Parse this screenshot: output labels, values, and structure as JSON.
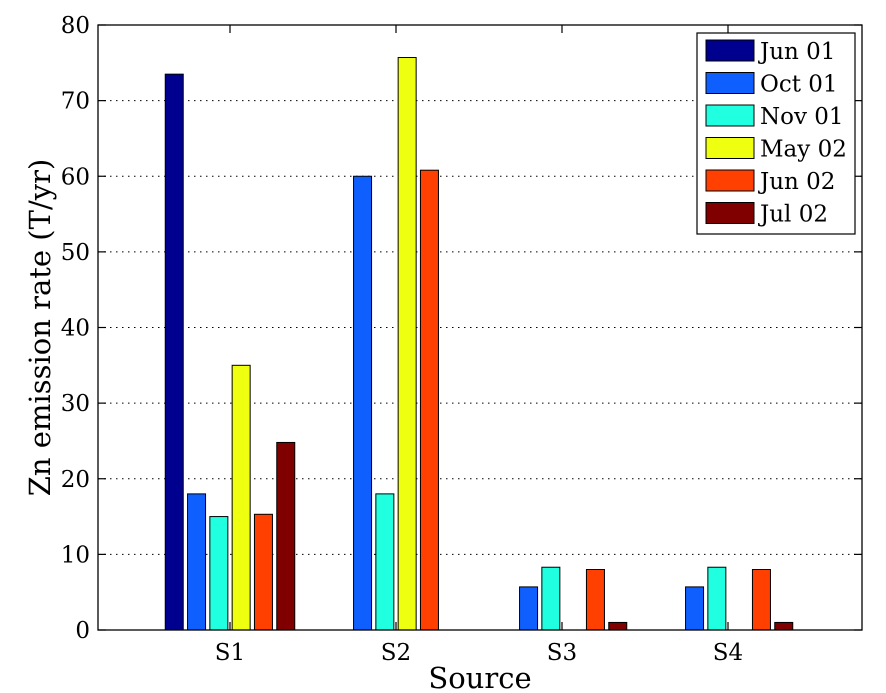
{
  "chart_data": {
    "type": "bar",
    "title": "",
    "xlabel": "Source",
    "ylabel": "Zn emission rate (T/yr)",
    "categories": [
      "S1",
      "S2",
      "S3",
      "S4"
    ],
    "ylim": [
      0,
      80
    ],
    "yticks": [
      0,
      10,
      20,
      30,
      40,
      50,
      60,
      70,
      80
    ],
    "grid": "horizontal-dotted",
    "legend_position": "top-right",
    "series": [
      {
        "name": "Jun 01",
        "color": "#00008f",
        "values": [
          73.5,
          0,
          0,
          0
        ]
      },
      {
        "name": "Oct 01",
        "color": "#0f5fff",
        "values": [
          18,
          60,
          5.7,
          5.7
        ]
      },
      {
        "name": "Nov 01",
        "color": "#20ffdf",
        "values": [
          15,
          18,
          8.3,
          8.3
        ]
      },
      {
        "name": "May 02",
        "color": "#efff10",
        "values": [
          35,
          75.7,
          0,
          0
        ]
      },
      {
        "name": "Jun 02",
        "color": "#ff4000",
        "values": [
          15.3,
          60.8,
          8,
          8
        ]
      },
      {
        "name": "Jul 02",
        "color": "#800000",
        "values": [
          24.8,
          0,
          1,
          1
        ]
      }
    ]
  }
}
